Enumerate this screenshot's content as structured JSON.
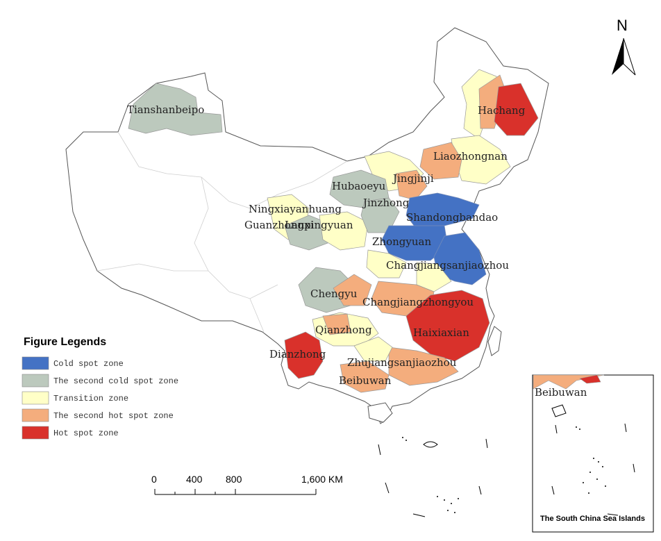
{
  "colors": {
    "cold": "#4472c4",
    "second_cold": "#bcc9bd",
    "transition": "#ffffc7",
    "second_hot": "#f4ad7d",
    "hot": "#d9312b",
    "border": "#b0b0b0"
  },
  "north_arrow": {
    "label": "N"
  },
  "regions": [
    {
      "id": "tianshanbeipo",
      "label": "Tianshanbeipo",
      "zone": "second_cold"
    },
    {
      "id": "hachang",
      "label": "Hachang",
      "zone": "hot"
    },
    {
      "id": "liaozhongnan",
      "label": "Liaozhongnan",
      "zone": "second_hot"
    },
    {
      "id": "jingjinji",
      "label": "Jingjinji",
      "zone": "second_hot"
    },
    {
      "id": "hubaoeyu",
      "label": "Hubaoeyu",
      "zone": "second_cold"
    },
    {
      "id": "jinzhong",
      "label": "Jinzhong",
      "zone": "second_cold"
    },
    {
      "id": "ningxiayanhuang",
      "label": "Ningxiayanhuang",
      "zone": "transition"
    },
    {
      "id": "shandongbandao",
      "label": "Shandongbandao",
      "zone": "cold"
    },
    {
      "id": "guanzhongpingyuan",
      "label": "Guanzhongpingyuan",
      "zone": "second_cold"
    },
    {
      "id": "lanxi",
      "label": "Lanxi",
      "zone": "second_cold"
    },
    {
      "id": "zhongyuan",
      "label": "Zhongyuan",
      "zone": "cold"
    },
    {
      "id": "changjiangsanjiaozhou",
      "label": "Changjiangsanjiaozhou",
      "zone": "cold"
    },
    {
      "id": "chengyu",
      "label": "Chengyu",
      "zone": "second_cold"
    },
    {
      "id": "changjiangzhongyou",
      "label": "Changjiangzhongyou",
      "zone": "second_hot"
    },
    {
      "id": "qianzhong",
      "label": "Qianzhong",
      "zone": "transition"
    },
    {
      "id": "haixiaxian",
      "label": "Haixiaxian",
      "zone": "hot"
    },
    {
      "id": "dianzhong",
      "label": "Dianzhong",
      "zone": "hot"
    },
    {
      "id": "zhujiangsanjiaozhou",
      "label": "Zhujiangsanjiaozhou",
      "zone": "second_hot"
    },
    {
      "id": "beibuwan",
      "label": "Beibuwan",
      "zone": "second_hot"
    }
  ],
  "legend": {
    "title": "Figure Legends",
    "items": [
      {
        "zone": "cold",
        "label": "Cold spot zone"
      },
      {
        "zone": "second_cold",
        "label": "The second cold spot zone"
      },
      {
        "zone": "transition",
        "label": "Transition zone"
      },
      {
        "zone": "second_hot",
        "label": "The second hot spot zone"
      },
      {
        "zone": "hot",
        "label": "Hot spot zone"
      }
    ]
  },
  "scale_bar": {
    "ticks": [
      "0",
      "400",
      "800",
      "1,600 KM"
    ]
  },
  "inset": {
    "caption": "The South China Sea Islands",
    "label": "Beibuwan"
  }
}
